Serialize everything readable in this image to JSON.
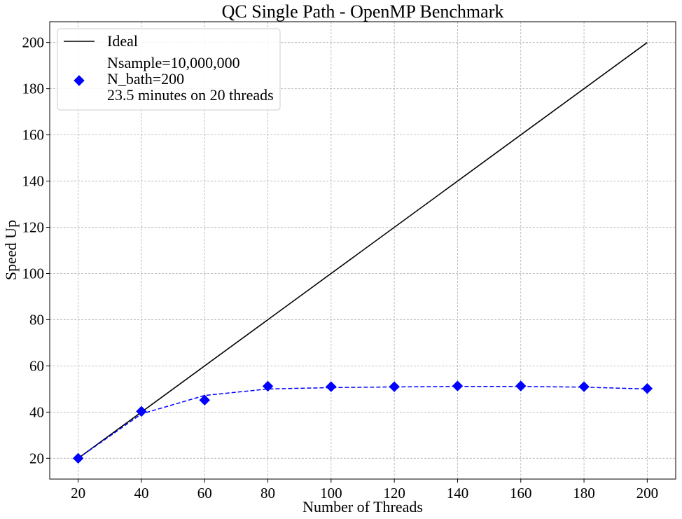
{
  "chart_data": {
    "type": "line",
    "title": "QC Single Path - OpenMP Benchmark",
    "xlabel": "Number of Threads",
    "ylabel": "Speed Up",
    "xticks": [
      20,
      40,
      60,
      80,
      100,
      120,
      140,
      160,
      180,
      200
    ],
    "yticks": [
      20,
      40,
      60,
      80,
      100,
      120,
      140,
      160,
      180,
      200
    ],
    "xlim": [
      11,
      209
    ],
    "ylim": [
      11,
      209
    ],
    "grid": true,
    "legend_position": "top-left",
    "series": [
      {
        "name": "Ideal",
        "style": "solid",
        "color": "#000000",
        "x": [
          20,
          200
        ],
        "y": [
          20,
          200
        ]
      },
      {
        "name": "Nsample=10,000,000\nN_bath=200\n23.5 minutes on 20 threads",
        "style": "markers",
        "marker": "diamond",
        "color": "#0000ff",
        "x": [
          20,
          40,
          60,
          80,
          100,
          120,
          140,
          160,
          180,
          200
        ],
        "y": [
          20.0,
          40.3,
          45.2,
          51.2,
          51.0,
          51.0,
          51.3,
          51.3,
          51.0,
          50.2
        ]
      },
      {
        "style": "dashed",
        "color": "#0000ff",
        "x": [
          20,
          40,
          60,
          80,
          100,
          120,
          140,
          160,
          180,
          200
        ],
        "y": [
          20.0,
          39.2,
          47.2,
          50.0,
          50.6,
          50.9,
          51.1,
          51.1,
          50.8,
          50.0
        ]
      }
    ]
  }
}
